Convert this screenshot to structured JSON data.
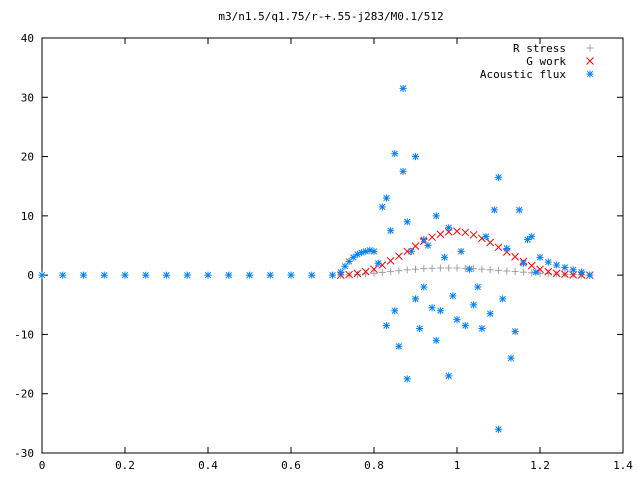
{
  "chart_data": {
    "type": "scatter",
    "title": "m3/n1.5/q1.75/r-+.55-j283/M0.1/512",
    "xlabel": "",
    "ylabel": "",
    "xlim": [
      0,
      1.4
    ],
    "ylim": [
      -30,
      40
    ],
    "x_ticks": [
      0,
      0.2,
      0.4,
      0.6,
      0.8,
      1,
      1.2,
      1.4
    ],
    "y_ticks": [
      -30,
      -20,
      -10,
      0,
      10,
      20,
      30,
      40
    ],
    "x_tick_labels": [
      "0",
      "0.2",
      "0.4",
      "0.6",
      "0.8",
      "1",
      "1.2",
      "1.4"
    ],
    "y_tick_labels": [
      "-30",
      "-20",
      "-10",
      "0",
      "10",
      "20",
      "30",
      "40"
    ],
    "grid": false,
    "legend_position": "top-right",
    "series": [
      {
        "name": "R stress",
        "marker": "plus",
        "color": "#a0a0a0",
        "x": [
          0.72,
          0.74,
          0.76,
          0.78,
          0.8,
          0.82,
          0.84,
          0.86,
          0.88,
          0.9,
          0.92,
          0.94,
          0.96,
          0.98,
          1.0,
          1.02,
          1.04,
          1.06,
          1.08,
          1.1,
          1.12,
          1.14,
          1.16,
          1.18,
          1.2,
          1.22,
          1.24,
          1.26,
          1.28,
          1.3,
          1.32
        ],
        "y": [
          0.0,
          0.05,
          0.1,
          0.2,
          0.3,
          0.45,
          0.6,
          0.75,
          0.9,
          1.0,
          1.1,
          1.15,
          1.2,
          1.2,
          1.2,
          1.15,
          1.1,
          1.0,
          0.9,
          0.8,
          0.7,
          0.6,
          0.5,
          0.4,
          0.3,
          0.25,
          0.2,
          0.15,
          0.1,
          0.05,
          0.0
        ]
      },
      {
        "name": "G work",
        "marker": "cross",
        "color": "#ff0000",
        "x": [
          0.72,
          0.74,
          0.76,
          0.78,
          0.8,
          0.82,
          0.84,
          0.86,
          0.88,
          0.9,
          0.92,
          0.94,
          0.96,
          0.98,
          1.0,
          1.02,
          1.04,
          1.06,
          1.08,
          1.1,
          1.12,
          1.14,
          1.16,
          1.18,
          1.2,
          1.22,
          1.24,
          1.26,
          1.28,
          1.3,
          1.32
        ],
        "y": [
          0.0,
          0.1,
          0.3,
          0.6,
          1.0,
          1.7,
          2.4,
          3.2,
          4.0,
          4.9,
          5.7,
          6.4,
          6.9,
          7.3,
          7.4,
          7.2,
          6.8,
          6.2,
          5.5,
          4.7,
          3.9,
          3.1,
          2.3,
          1.6,
          1.0,
          0.6,
          0.3,
          0.15,
          0.05,
          0.02,
          0.0
        ]
      },
      {
        "name": "Acoustic flux",
        "marker": "star",
        "color": "#0080ff",
        "x": [
          0.0,
          0.05,
          0.1,
          0.15,
          0.2,
          0.25,
          0.3,
          0.35,
          0.4,
          0.45,
          0.5,
          0.55,
          0.6,
          0.65,
          0.7,
          0.72,
          0.73,
          0.74,
          0.75,
          0.76,
          0.77,
          0.78,
          0.79,
          0.8,
          0.81,
          0.82,
          0.83,
          0.83,
          0.84,
          0.85,
          0.85,
          0.86,
          0.87,
          0.87,
          0.88,
          0.88,
          0.89,
          0.9,
          0.9,
          0.91,
          0.92,
          0.92,
          0.93,
          0.94,
          0.95,
          0.95,
          0.96,
          0.97,
          0.98,
          0.98,
          0.99,
          1.0,
          1.01,
          1.02,
          1.03,
          1.04,
          1.05,
          1.06,
          1.07,
          1.08,
          1.09,
          1.1,
          1.1,
          1.11,
          1.12,
          1.13,
          1.14,
          1.15,
          1.16,
          1.17,
          1.18,
          1.19,
          1.2,
          1.22,
          1.24,
          1.26,
          1.28,
          1.3,
          1.32
        ],
        "y": [
          0.0,
          0.0,
          0.0,
          0.0,
          0.0,
          0.0,
          0.0,
          0.0,
          0.0,
          0.0,
          0.0,
          0.0,
          0.0,
          0.0,
          0.0,
          0.5,
          1.5,
          2.3,
          3.0,
          3.5,
          3.8,
          4.0,
          4.2,
          4.0,
          2.0,
          11.5,
          13.0,
          -8.5,
          7.5,
          20.5,
          -6.0,
          -12.0,
          17.5,
          31.5,
          -17.5,
          9.0,
          4.0,
          20.0,
          -4.0,
          -9.0,
          6.0,
          -2.0,
          5.0,
          -5.5,
          10.0,
          -11.0,
          -6.0,
          3.0,
          -17.0,
          8.0,
          -3.5,
          -7.5,
          4.0,
          -8.5,
          1.0,
          -5.0,
          -2.0,
          -9.0,
          6.5,
          -6.5,
          11.0,
          16.5,
          -26.0,
          -4.0,
          4.5,
          -14.0,
          -9.5,
          11.0,
          2.0,
          6.0,
          6.5,
          0.5,
          3.0,
          2.2,
          1.7,
          1.3,
          0.9,
          0.5,
          0.0
        ]
      }
    ]
  }
}
